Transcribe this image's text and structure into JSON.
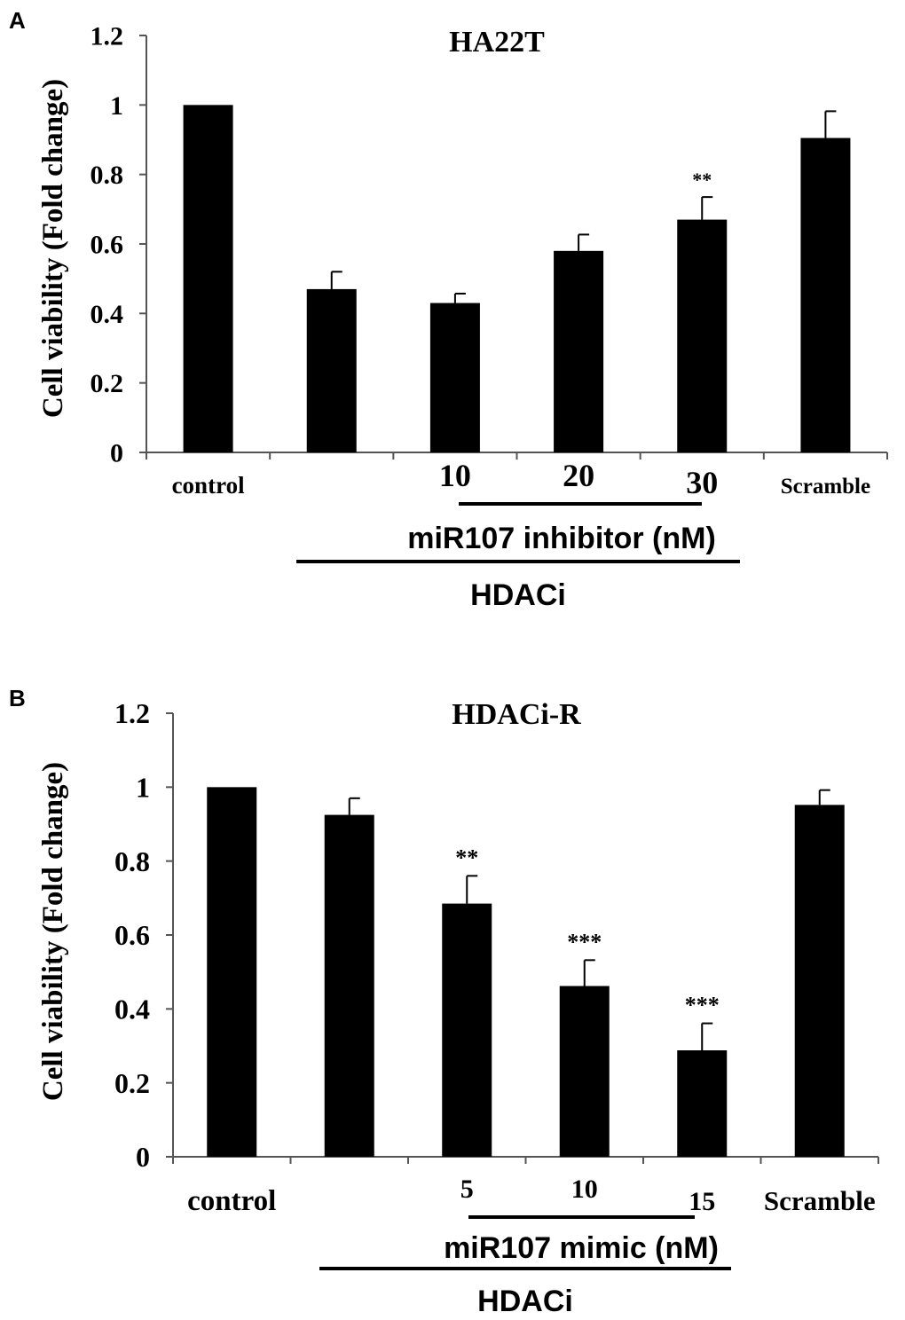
{
  "chart_data": [
    {
      "panel_label": "A",
      "type": "bar",
      "title": "HA22T",
      "ylabel": "Cell viability (Fold change)",
      "ylim": [
        0,
        1.2
      ],
      "yticks": [
        "0",
        "0.2",
        "0.4",
        "0.6",
        "0.8",
        "1",
        "1.2"
      ],
      "categories": [
        "control",
        "",
        "10",
        "20",
        "30",
        "Scramble"
      ],
      "values": [
        1.0,
        0.47,
        0.43,
        0.58,
        0.67,
        0.905
      ],
      "errors": [
        0.0,
        0.05,
        0.027,
        0.047,
        0.065,
        0.077
      ],
      "annotations": [
        "",
        "",
        "",
        "",
        "**",
        ""
      ],
      "bracket_inner_label": "miR107 inhibitor (nM)",
      "bracket_outer_label": "HDACi"
    },
    {
      "panel_label": "B",
      "type": "bar",
      "title": "HDACi-R",
      "ylabel": "Cell viability (Fold change)",
      "ylim": [
        0,
        1.2
      ],
      "yticks": [
        "0",
        "0.2",
        "0.4",
        "0.6",
        "0.8",
        "1",
        "1.2"
      ],
      "categories": [
        "control",
        "",
        "5",
        "10",
        "15",
        "Scramble"
      ],
      "values": [
        1.0,
        0.925,
        0.685,
        0.462,
        0.288,
        0.952
      ],
      "errors": [
        0.0,
        0.045,
        0.075,
        0.07,
        0.073,
        0.04
      ],
      "annotations": [
        "",
        "",
        "**",
        "***",
        "***",
        ""
      ],
      "bracket_inner_label": "miR107 mimic (nM)",
      "bracket_outer_label": "HDACi"
    }
  ]
}
